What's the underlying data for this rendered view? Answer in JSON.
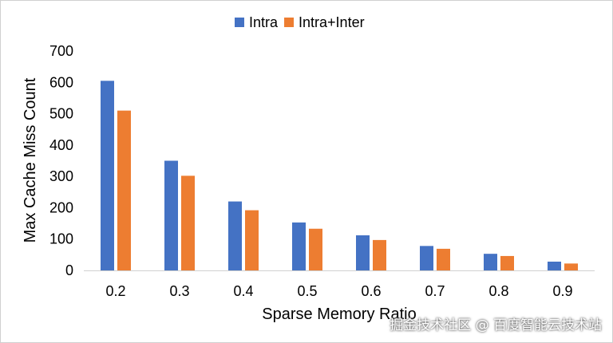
{
  "chart_data": {
    "type": "bar",
    "title": "",
    "xlabel": "Sparse Memory Ratio",
    "ylabel": "Max Cache Miss Count",
    "categories": [
      "0.2",
      "0.3",
      "0.4",
      "0.5",
      "0.6",
      "0.7",
      "0.8",
      "0.9"
    ],
    "series": [
      {
        "name": "Intra",
        "color": "#4472C4",
        "values": [
          605,
          350,
          220,
          153,
          112,
          78,
          53,
          28
        ]
      },
      {
        "name": "Intra+Inter",
        "color": "#ED7D31",
        "values": [
          510,
          302,
          192,
          133,
          97,
          69,
          46,
          22
        ]
      }
    ],
    "ylim": [
      0,
      700
    ],
    "yticks": [
      0,
      100,
      200,
      300,
      400,
      500,
      600,
      700
    ],
    "grid": false,
    "legend_position": "top-center"
  },
  "watermark": "掘金技术社区 @ 百度智能云技术站"
}
